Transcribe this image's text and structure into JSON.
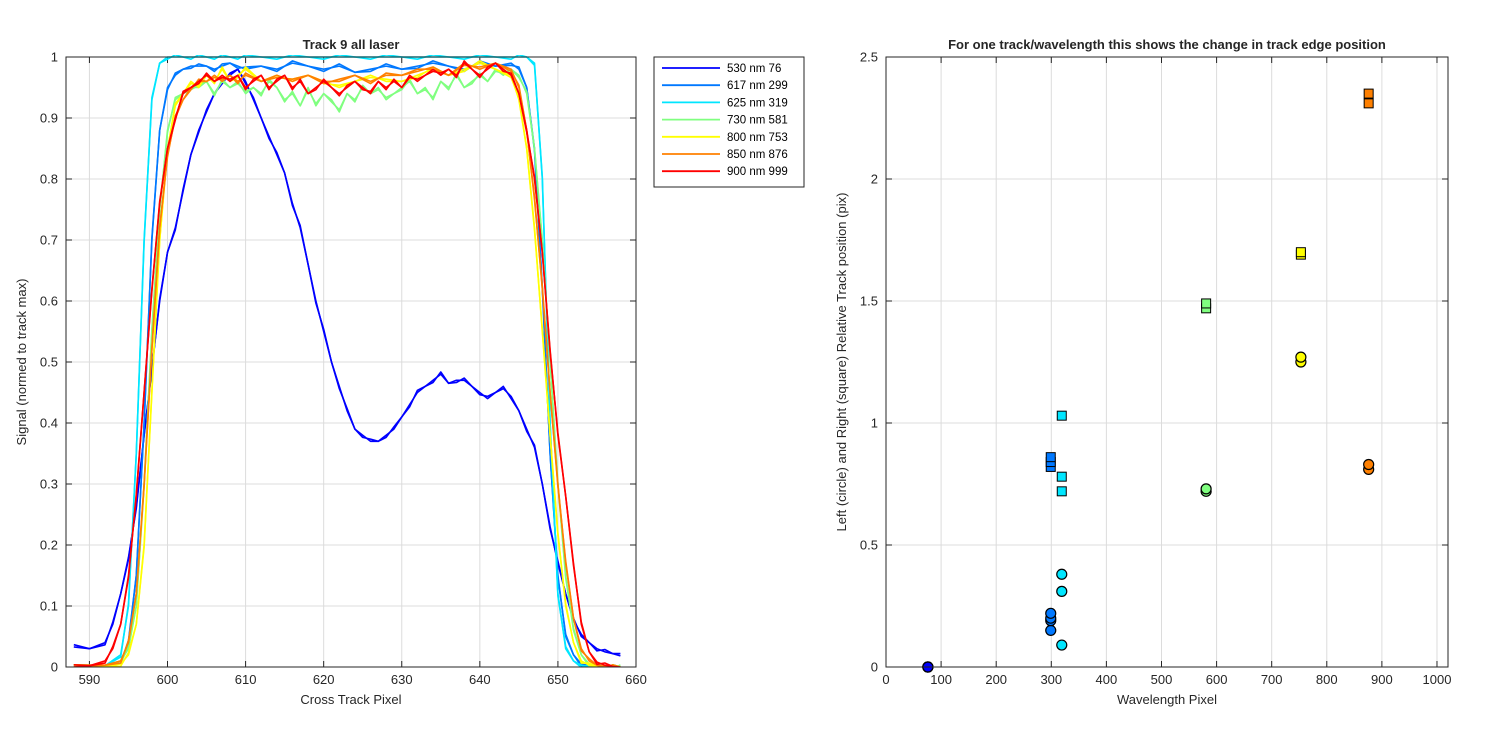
{
  "chart_data": [
    {
      "type": "line",
      "title": "Track 9  all laser",
      "xlabel": "Cross Track Pixel",
      "ylabel": "Signal (normed to track max)",
      "xlim": [
        587,
        660
      ],
      "ylim": [
        0,
        1
      ],
      "xticks": [
        590,
        600,
        610,
        620,
        630,
        640,
        650,
        660
      ],
      "yticks": [
        0,
        0.1,
        0.2,
        0.3,
        0.4,
        0.5,
        0.6,
        0.7,
        0.8,
        0.9,
        1
      ],
      "grid": true,
      "legend_position": "outside-top-right",
      "series": [
        {
          "name": "530 nm 76",
          "color": "#0000ff",
          "x": [
            588,
            590,
            592,
            593,
            594,
            595,
            596,
            597,
            598,
            599,
            600,
            601,
            602,
            603,
            604,
            605,
            606,
            607,
            608,
            609,
            610,
            611,
            612,
            613,
            614,
            615,
            616,
            617,
            618,
            619,
            620,
            621,
            622,
            623,
            624,
            625,
            626,
            627,
            628,
            629,
            630,
            631,
            632,
            633,
            634,
            635,
            636,
            637,
            638,
            639,
            640,
            641,
            642,
            643,
            644,
            645,
            646,
            647,
            648,
            649,
            650,
            651,
            652,
            653,
            654,
            655,
            656,
            657,
            658
          ],
          "y": [
            0.033,
            0.03,
            0.04,
            0.07,
            0.12,
            0.18,
            0.26,
            0.38,
            0.49,
            0.6,
            0.68,
            0.72,
            0.78,
            0.84,
            0.88,
            0.91,
            0.94,
            0.96,
            0.97,
            0.98,
            0.96,
            0.93,
            0.9,
            0.87,
            0.84,
            0.81,
            0.76,
            0.72,
            0.66,
            0.6,
            0.55,
            0.5,
            0.46,
            0.42,
            0.39,
            0.38,
            0.37,
            0.37,
            0.38,
            0.39,
            0.41,
            0.43,
            0.45,
            0.46,
            0.47,
            0.48,
            0.465,
            0.47,
            0.47,
            0.46,
            0.45,
            0.44,
            0.45,
            0.46,
            0.44,
            0.42,
            0.39,
            0.36,
            0.3,
            0.23,
            0.17,
            0.12,
            0.08,
            0.05,
            0.04,
            0.03,
            0.025,
            0.022,
            0.022
          ]
        },
        {
          "name": "617 nm 299",
          "color": "#0078ff",
          "x": [
            588,
            592,
            594,
            595,
            596,
            597,
            598,
            599,
            600,
            601,
            602,
            603,
            604,
            605,
            606,
            607,
            608,
            609,
            610,
            612,
            614,
            616,
            618,
            620,
            622,
            624,
            626,
            628,
            630,
            632,
            634,
            636,
            638,
            640,
            642,
            644,
            645,
            646,
            647,
            648,
            649,
            650,
            651,
            652,
            653,
            654,
            655,
            656,
            657,
            658
          ],
          "y": [
            0,
            0.002,
            0.01,
            0.04,
            0.15,
            0.4,
            0.7,
            0.88,
            0.95,
            0.97,
            0.98,
            0.985,
            0.985,
            0.985,
            0.98,
            0.985,
            0.99,
            0.985,
            0.98,
            0.985,
            0.98,
            0.99,
            0.985,
            0.98,
            0.985,
            0.975,
            0.98,
            0.985,
            0.98,
            0.985,
            0.99,
            0.985,
            0.98,
            0.99,
            0.985,
            0.99,
            0.98,
            0.95,
            0.85,
            0.62,
            0.35,
            0.15,
            0.05,
            0.02,
            0.005,
            0.002,
            0,
            0,
            0,
            0
          ]
        },
        {
          "name": "625 nm 319",
          "color": "#00e6ff",
          "x": [
            588,
            592,
            594,
            595,
            596,
            597,
            598,
            599,
            600,
            601,
            602,
            603,
            604,
            605,
            606,
            607,
            608,
            609,
            610,
            612,
            614,
            616,
            618,
            620,
            622,
            624,
            626,
            628,
            630,
            632,
            634,
            636,
            638,
            640,
            642,
            644,
            645,
            646,
            647,
            648,
            649,
            650,
            651,
            652,
            653,
            654,
            655,
            656,
            657,
            658
          ],
          "y": [
            0,
            0.002,
            0.02,
            0.1,
            0.35,
            0.7,
            0.93,
            0.99,
            1,
            1,
            1,
            1,
            1,
            1,
            1,
            1,
            1,
            1,
            1,
            1,
            1,
            1,
            1,
            1,
            1,
            1,
            1,
            1,
            1,
            1,
            1,
            1,
            1,
            1,
            1,
            1,
            1,
            1,
            0.99,
            0.8,
            0.4,
            0.12,
            0.03,
            0.01,
            0.003,
            0,
            0,
            0,
            0,
            0
          ]
        },
        {
          "name": "730 nm 581",
          "color": "#80ff80",
          "x": [
            588,
            592,
            594,
            595,
            596,
            597,
            598,
            599,
            600,
            601,
            602,
            603,
            604,
            605,
            606,
            607,
            608,
            609,
            610,
            611,
            612,
            613,
            614,
            615,
            616,
            617,
            618,
            619,
            620,
            621,
            622,
            623,
            624,
            625,
            626,
            627,
            628,
            629,
            630,
            631,
            632,
            633,
            634,
            635,
            636,
            637,
            638,
            639,
            640,
            641,
            642,
            643,
            644,
            645,
            646,
            647,
            648,
            649,
            650,
            651,
            652,
            653,
            654,
            655,
            656,
            657,
            658
          ],
          "y": [
            0,
            0.002,
            0.01,
            0.03,
            0.1,
            0.3,
            0.55,
            0.75,
            0.88,
            0.93,
            0.94,
            0.95,
            0.95,
            0.96,
            0.94,
            0.96,
            0.95,
            0.96,
            0.94,
            0.95,
            0.94,
            0.96,
            0.95,
            0.93,
            0.94,
            0.92,
            0.95,
            0.92,
            0.94,
            0.93,
            0.91,
            0.94,
            0.93,
            0.95,
            0.94,
            0.95,
            0.93,
            0.94,
            0.95,
            0.96,
            0.94,
            0.95,
            0.93,
            0.96,
            0.95,
            0.97,
            0.95,
            0.96,
            0.97,
            0.96,
            0.98,
            0.97,
            0.98,
            0.97,
            0.94,
            0.85,
            0.7,
            0.5,
            0.3,
            0.15,
            0.06,
            0.02,
            0.005,
            0.002,
            0,
            0,
            0
          ]
        },
        {
          "name": "800 nm 753",
          "color": "#ffff00",
          "x": [
            588,
            592,
            594,
            595,
            596,
            597,
            598,
            599,
            600,
            601,
            602,
            603,
            604,
            605,
            606,
            607,
            608,
            609,
            610,
            612,
            614,
            616,
            618,
            620,
            622,
            624,
            626,
            628,
            630,
            632,
            634,
            636,
            638,
            640,
            642,
            644,
            645,
            646,
            647,
            648,
            649,
            650,
            651,
            652,
            653,
            654,
            655,
            656,
            657,
            658
          ],
          "y": [
            0,
            0.001,
            0.005,
            0.02,
            0.07,
            0.2,
            0.45,
            0.7,
            0.85,
            0.92,
            0.94,
            0.96,
            0.95,
            0.97,
            0.96,
            0.98,
            0.96,
            0.97,
            0.98,
            0.96,
            0.97,
            0.96,
            0.97,
            0.96,
            0.95,
            0.96,
            0.97,
            0.96,
            0.96,
            0.97,
            0.98,
            0.97,
            0.98,
            0.99,
            0.98,
            0.97,
            0.93,
            0.85,
            0.72,
            0.55,
            0.38,
            0.22,
            0.1,
            0.04,
            0.01,
            0.003,
            0.001,
            0,
            0,
            0
          ]
        },
        {
          "name": "850 nm 876",
          "color": "#ff8000",
          "x": [
            588,
            592,
            594,
            595,
            596,
            597,
            598,
            599,
            600,
            601,
            602,
            603,
            604,
            605,
            606,
            607,
            608,
            609,
            610,
            612,
            614,
            616,
            618,
            620,
            622,
            624,
            626,
            628,
            630,
            632,
            634,
            636,
            638,
            640,
            642,
            644,
            645,
            646,
            647,
            648,
            649,
            650,
            651,
            652,
            653,
            654,
            655,
            656,
            657,
            658
          ],
          "y": [
            0,
            0.003,
            0.01,
            0.04,
            0.12,
            0.3,
            0.52,
            0.72,
            0.84,
            0.9,
            0.93,
            0.95,
            0.96,
            0.96,
            0.97,
            0.96,
            0.97,
            0.96,
            0.97,
            0.96,
            0.97,
            0.96,
            0.97,
            0.96,
            0.96,
            0.97,
            0.96,
            0.97,
            0.97,
            0.98,
            0.98,
            0.97,
            0.99,
            0.98,
            0.99,
            0.98,
            0.95,
            0.88,
            0.77,
            0.62,
            0.45,
            0.3,
            0.17,
            0.08,
            0.03,
            0.01,
            0.003,
            0.001,
            0,
            0
          ]
        },
        {
          "name": "900 nm 999",
          "color": "#ff0000",
          "x": [
            588,
            590,
            592,
            593,
            594,
            595,
            596,
            597,
            598,
            599,
            600,
            601,
            602,
            603,
            604,
            605,
            606,
            607,
            608,
            609,
            610,
            611,
            612,
            613,
            614,
            615,
            616,
            617,
            618,
            619,
            620,
            621,
            622,
            623,
            624,
            625,
            626,
            627,
            628,
            629,
            630,
            631,
            632,
            633,
            634,
            635,
            636,
            637,
            638,
            639,
            640,
            641,
            642,
            643,
            644,
            645,
            646,
            647,
            648,
            649,
            650,
            651,
            652,
            653,
            654,
            655,
            656,
            657,
            658
          ],
          "y": [
            0,
            0.002,
            0.01,
            0.03,
            0.07,
            0.15,
            0.28,
            0.45,
            0.62,
            0.76,
            0.85,
            0.9,
            0.94,
            0.95,
            0.96,
            0.97,
            0.96,
            0.97,
            0.96,
            0.97,
            0.95,
            0.96,
            0.97,
            0.95,
            0.96,
            0.97,
            0.95,
            0.96,
            0.94,
            0.95,
            0.96,
            0.95,
            0.94,
            0.95,
            0.96,
            0.95,
            0.94,
            0.96,
            0.95,
            0.96,
            0.95,
            0.97,
            0.96,
            0.97,
            0.98,
            0.97,
            0.98,
            0.97,
            0.99,
            0.98,
            0.97,
            0.98,
            0.99,
            0.98,
            0.97,
            0.94,
            0.88,
            0.8,
            0.68,
            0.52,
            0.38,
            0.28,
            0.17,
            0.07,
            0.025,
            0.008,
            0.003,
            0.001,
            0
          ]
        }
      ]
    },
    {
      "type": "scatter",
      "title": "For one track/wavelength this shows the change in track edge position",
      "xlabel": "Wavelength Pixel",
      "ylabel": "Left (circle) and Right (square) Relative Track position (pix)",
      "xlim": [
        0,
        1020
      ],
      "ylim": [
        0,
        2.5
      ],
      "xticks": [
        0,
        100,
        200,
        300,
        400,
        500,
        600,
        700,
        800,
        900,
        1000
      ],
      "yticks": [
        0,
        0.5,
        1,
        1.5,
        2,
        2.5
      ],
      "grid": true,
      "series": [
        {
          "marker": "circle",
          "color": "#0000ff",
          "x": [
            76,
            76,
            76,
            76
          ],
          "y": [
            0,
            0,
            0,
            0
          ]
        },
        {
          "marker": "circle",
          "color": "#0078ff",
          "x": [
            299,
            299,
            299,
            299
          ],
          "y": [
            0.15,
            0.19,
            0.2,
            0.22
          ]
        },
        {
          "marker": "circle",
          "color": "#00e6ff",
          "x": [
            319,
            319,
            319
          ],
          "y": [
            0.09,
            0.31,
            0.38
          ]
        },
        {
          "marker": "circle",
          "color": "#80ff80",
          "x": [
            581,
            581
          ],
          "y": [
            0.72,
            0.73
          ]
        },
        {
          "marker": "circle",
          "color": "#ffff00",
          "x": [
            753,
            753
          ],
          "y": [
            1.25,
            1.27
          ]
        },
        {
          "marker": "circle",
          "color": "#ff8000",
          "x": [
            876,
            876
          ],
          "y": [
            0.81,
            0.83
          ]
        },
        {
          "marker": "square",
          "color": "#0078ff",
          "x": [
            299,
            299,
            299
          ],
          "y": [
            0.82,
            0.84,
            0.86
          ]
        },
        {
          "marker": "square",
          "color": "#00e6ff",
          "x": [
            319,
            319,
            319
          ],
          "y": [
            0.72,
            0.78,
            1.03
          ]
        },
        {
          "marker": "square",
          "color": "#80ff80",
          "x": [
            581,
            581
          ],
          "y": [
            1.47,
            1.49
          ]
        },
        {
          "marker": "square",
          "color": "#ffff00",
          "x": [
            753,
            753
          ],
          "y": [
            1.69,
            1.7
          ]
        },
        {
          "marker": "square",
          "color": "#ff8000",
          "x": [
            876,
            876
          ],
          "y": [
            2.31,
            2.35
          ]
        }
      ]
    }
  ]
}
